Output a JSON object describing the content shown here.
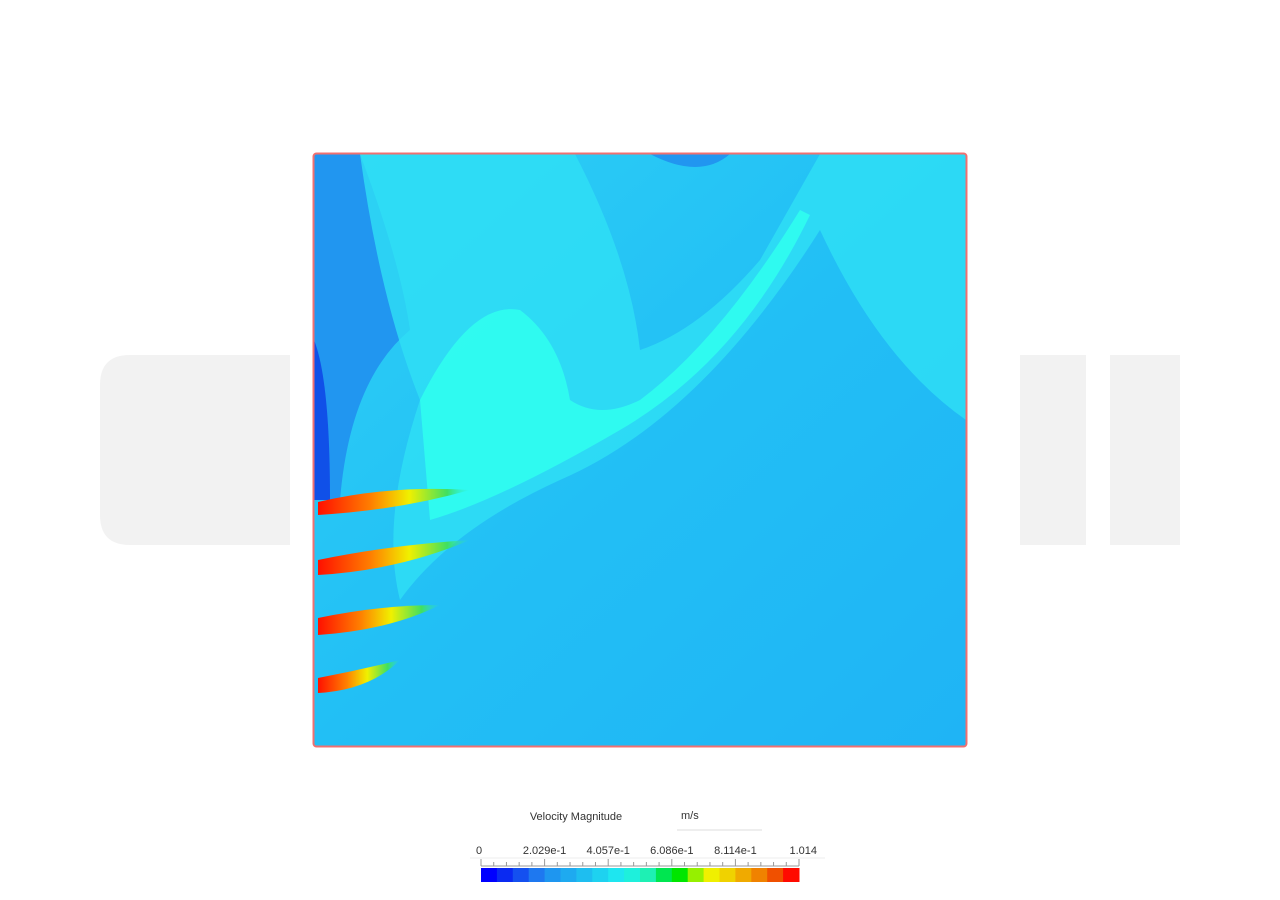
{
  "legend": {
    "title": "Velocity Magnitude",
    "unit": "m/s",
    "ticks": [
      "0",
      "2.029e-1",
      "4.057e-1",
      "6.086e-1",
      "8.114e-1",
      "1.014"
    ],
    "colors": [
      "#0000ff",
      "#0a2af2",
      "#1450f0",
      "#1e78f0",
      "#1e96f0",
      "#1eaaf0",
      "#1ebef0",
      "#1ed2f0",
      "#1ee6f0",
      "#1ef0dc",
      "#1ef0b4",
      "#00e650",
      "#00e600",
      "#96f000",
      "#f0f000",
      "#f0d200",
      "#f0aa00",
      "#f08200",
      "#f05000",
      "#ff0a00"
    ]
  }
}
